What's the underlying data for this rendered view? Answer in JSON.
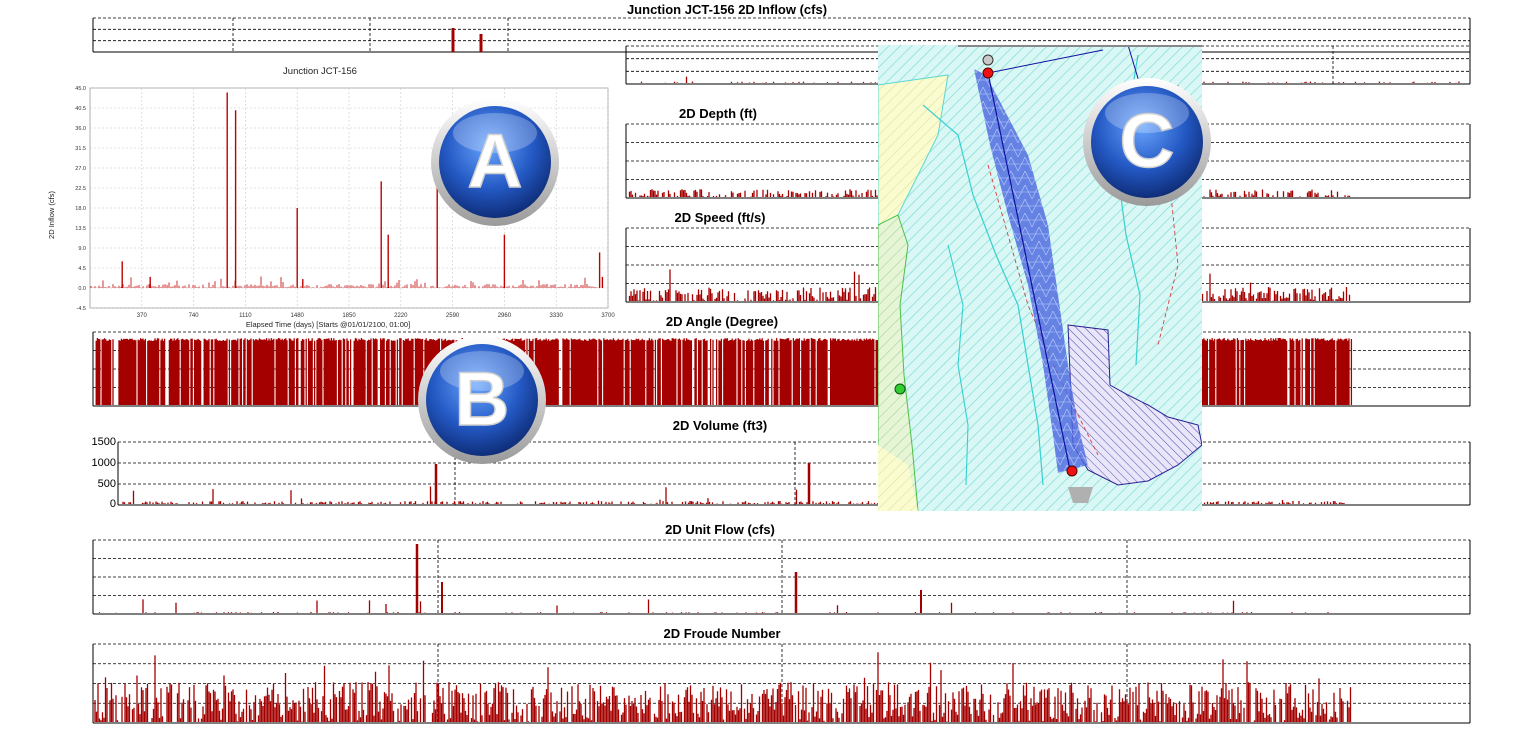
{
  "strips": {
    "inflow": {
      "title": "Junction JCT-156 2D Inflow (cfs)"
    },
    "depth": {
      "title": "2D Depth (ft)"
    },
    "speed": {
      "title": "2D Speed (ft/s)"
    },
    "angle": {
      "title": "2D Angle (Degree)"
    },
    "volume": {
      "title": "2D Volume (ft3)",
      "yticks": [
        "1500",
        "1000",
        "500",
        "0"
      ]
    },
    "unitflow": {
      "title": "2D Unit Flow (cfs)"
    },
    "froude": {
      "title": "2D Froude Number"
    }
  },
  "chart_data": {
    "type": "bar",
    "title": "Junction JCT-156",
    "xlabel": "Elapsed Time (days) [Starts @01/01/2100, 01:00]",
    "ylabel": "2D Inflow (cfs)",
    "xlim": [
      0,
      3700
    ],
    "ylim": [
      -4.5,
      45.0
    ],
    "x_ticks": [
      "370",
      "740",
      "1110",
      "1480",
      "1850",
      "2220",
      "2590",
      "2960",
      "3330",
      "3700"
    ],
    "y_ticks": [
      "45.0",
      "40.5",
      "36.0",
      "31.5",
      "27.0",
      "22.5",
      "18.0",
      "13.5",
      "9.0",
      "4.5",
      "0.0",
      "-4.5"
    ],
    "grid": true,
    "series": [
      {
        "color": "#c00000",
        "x": [
          230,
          430,
          980,
          1040,
          1480,
          1520,
          2080,
          2130,
          2480,
          2960,
          3640,
          3660
        ],
        "y": [
          6,
          2.5,
          44,
          40,
          18,
          2,
          24,
          12,
          28,
          12,
          8,
          2.5
        ]
      }
    ]
  },
  "badges": {
    "a": "A",
    "b": "B",
    "c": "C"
  },
  "colors": {
    "series": "#a50000",
    "accent": "#c00000",
    "badge": "#2a63c0"
  }
}
